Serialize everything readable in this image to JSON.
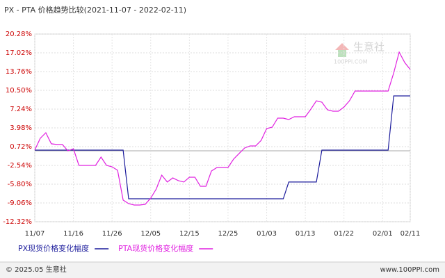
{
  "chart_data": {
    "type": "line",
    "title": "PX - PTA 价格趋势比较(2021-11-07 - 2022-02-11)",
    "categories": [
      "11/07",
      null,
      null,
      null,
      null,
      null,
      null,
      "11/16",
      null,
      null,
      null,
      null,
      null,
      null,
      "11/26",
      null,
      null,
      null,
      null,
      null,
      null,
      "12/05",
      null,
      null,
      null,
      null,
      null,
      null,
      "12/15",
      null,
      null,
      null,
      null,
      null,
      null,
      "12/25",
      null,
      null,
      null,
      null,
      null,
      null,
      "01/03",
      null,
      null,
      null,
      null,
      null,
      null,
      "01/13",
      null,
      null,
      null,
      null,
      null,
      null,
      "01/22",
      null,
      null,
      null,
      null,
      null,
      null,
      "02/01",
      null,
      null,
      null,
      null,
      "02/11"
    ],
    "series": [
      {
        "name": "PX现货价格变化幅度",
        "color": "#1c1c9c",
        "values": [
          0.12,
          0.12,
          0.12,
          0.12,
          0.12,
          0.12,
          0.12,
          0.12,
          0.12,
          0.12,
          0.12,
          0.12,
          0.12,
          0.12,
          0.12,
          0.12,
          0.12,
          -8.33,
          -8.33,
          -8.33,
          -8.33,
          -8.33,
          -8.33,
          -8.33,
          -8.33,
          -8.33,
          -8.33,
          -8.33,
          -8.33,
          -8.33,
          -8.33,
          -8.33,
          -8.33,
          -8.33,
          -8.33,
          -8.33,
          -8.33,
          -8.33,
          -8.33,
          -8.33,
          -8.33,
          -8.33,
          -8.33,
          -8.33,
          -8.33,
          -8.33,
          -5.43,
          -5.43,
          -5.43,
          -5.43,
          -5.43,
          -5.43,
          0.12,
          0.12,
          0.12,
          0.12,
          0.12,
          0.12,
          0.12,
          0.12,
          0.12,
          0.12,
          0.12,
          0.12,
          0.12,
          9.54,
          9.54,
          9.54,
          9.54
        ]
      },
      {
        "name": "PTA现货价格变化幅度",
        "color": "#e020e0",
        "values": [
          0.12,
          2.17,
          3.14,
          1.21,
          1.09,
          1.09,
          0,
          0.36,
          -2.54,
          -2.54,
          -2.54,
          -2.54,
          -1.09,
          -2.54,
          -2.78,
          -3.38,
          -8.57,
          -9.18,
          -9.42,
          -9.42,
          -9.3,
          -8.21,
          -6.64,
          -4.23,
          -5.43,
          -4.71,
          -5.19,
          -5.43,
          -4.59,
          -4.59,
          -6.16,
          -6.16,
          -3.5,
          -2.9,
          -2.9,
          -2.9,
          -1.45,
          -0.48,
          0.48,
          0.84,
          0.84,
          1.81,
          3.86,
          4.1,
          5.67,
          5.67,
          5.43,
          5.91,
          5.91,
          5.91,
          7.24,
          8.69,
          8.45,
          7.12,
          6.88,
          6.88,
          7.6,
          8.69,
          10.38,
          10.38,
          10.38,
          10.38,
          10.38,
          10.38,
          10.38,
          13.52,
          17.14,
          15.33,
          14.12
        ]
      }
    ],
    "ylim": [
      -12.32,
      20.28
    ],
    "yticks": [
      {
        "value": 20.28,
        "label": "20.28%"
      },
      {
        "value": 17.02,
        "label": "17.02%"
      },
      {
        "value": 13.76,
        "label": "13.76%"
      },
      {
        "value": 10.5,
        "label": "10.50%"
      },
      {
        "value": 7.24,
        "label": "7.24%"
      },
      {
        "value": 3.98,
        "label": "3.98%"
      },
      {
        "value": 0.72,
        "label": "0.72%"
      },
      {
        "value": -2.54,
        "label": "-2.54%"
      },
      {
        "value": -5.8,
        "label": "-5.80%"
      },
      {
        "value": -9.06,
        "label": "-9.06%"
      },
      {
        "value": -12.32,
        "label": "-12.32%"
      }
    ],
    "grid": true,
    "watermark": "生意社",
    "watermark_sub": "100PPI.COM"
  },
  "footer": {
    "left": "© 2025.05 生意社",
    "right": "www.100PPI.com"
  }
}
